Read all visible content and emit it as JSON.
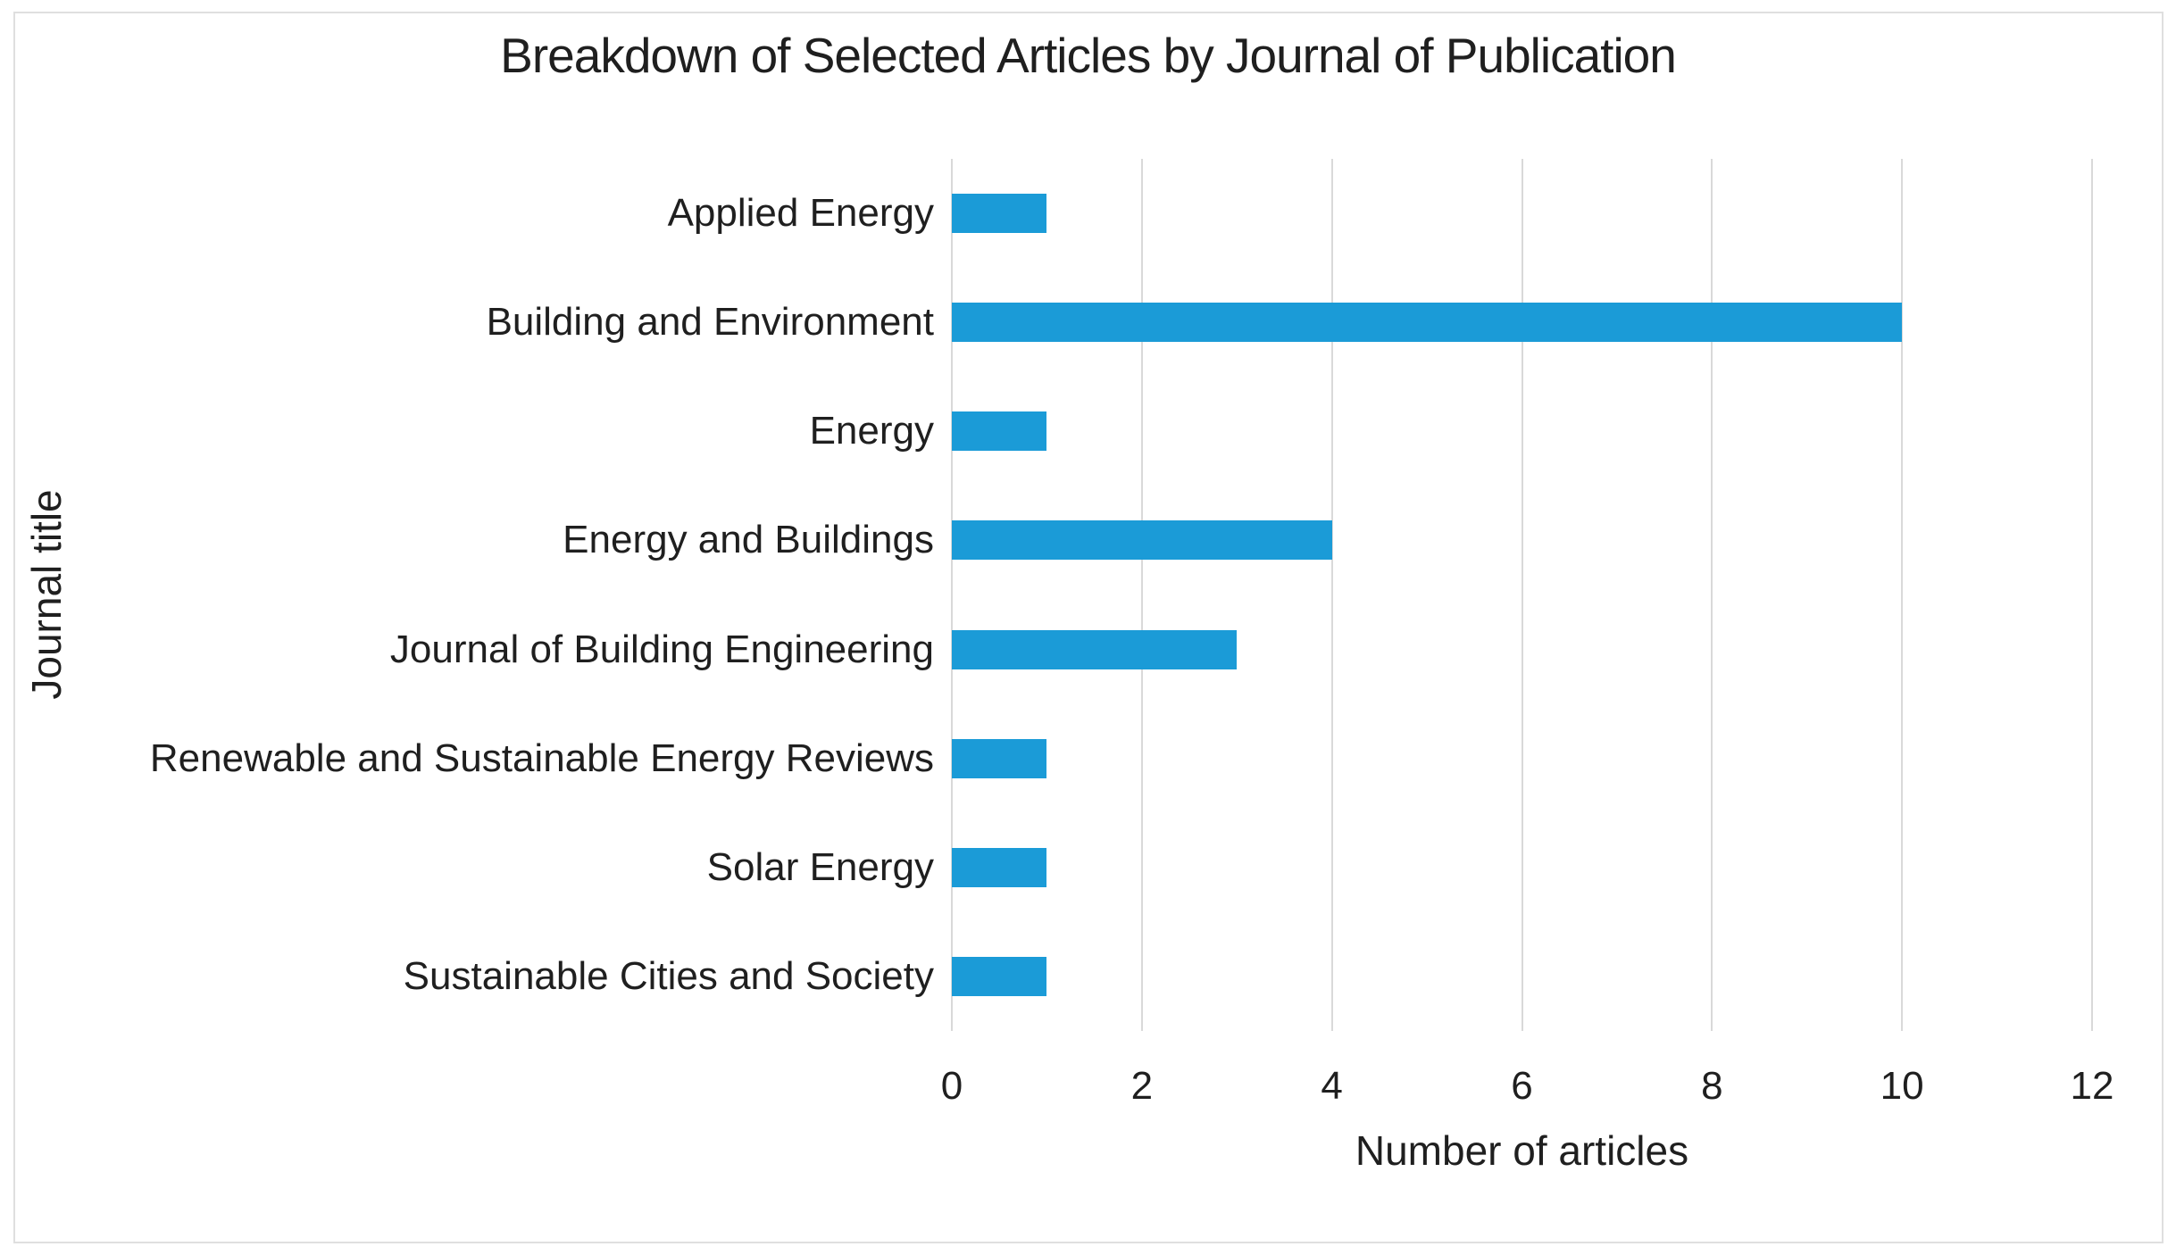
{
  "chart_data": {
    "type": "bar",
    "orientation": "horizontal",
    "title": "Breakdown of Selected Articles by Journal of Publication",
    "xlabel": "Number of articles",
    "ylabel": "Journal title",
    "categories": [
      "Applied Energy",
      "Building and Environment",
      "Energy",
      "Energy and Buildings",
      "Journal of Building Engineering",
      "Renewable and Sustainable Energy Reviews",
      "Solar Energy",
      "Sustainable Cities and Society"
    ],
    "values": [
      1,
      10,
      1,
      4,
      3,
      1,
      1,
      1
    ],
    "xlim": [
      0,
      12
    ],
    "xticks": [
      0,
      2,
      4,
      6,
      8,
      10,
      12
    ],
    "grid": true,
    "legend": false,
    "colors": {
      "bar": "#1b9bd7",
      "gridline": "#d9d9d9",
      "text": "#1f1f1f",
      "frame_border": "#dfdfdf",
      "background": "#ffffff"
    }
  }
}
